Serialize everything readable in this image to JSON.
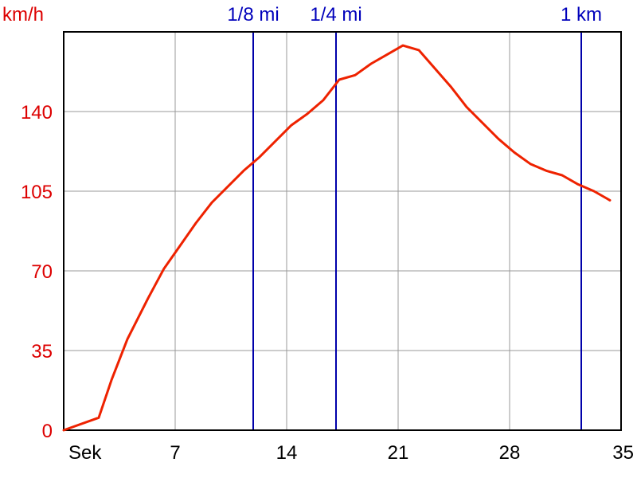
{
  "chart_data": {
    "type": "line",
    "ylabel": "km/h",
    "xlabel": "Sek",
    "xlim": [
      0,
      35
    ],
    "ylim": [
      0,
      175
    ],
    "x_ticks": [
      7,
      14,
      21,
      28,
      35
    ],
    "y_ticks": [
      0,
      35,
      70,
      105,
      140
    ],
    "grid": true,
    "colors": {
      "line": "#ee2200",
      "y_labels": "#dd0000",
      "markers": "#0000aa",
      "grid": "#999999"
    },
    "series": [
      {
        "x": [
          0,
          2.2,
          3,
          4,
          5.3,
          6.3,
          7.3,
          8.3,
          9.3,
          10.3,
          11.3,
          12.3,
          13.3,
          14.3,
          15.3,
          16.3,
          17.3,
          18.3,
          19.3,
          20.3,
          21.3,
          22.3,
          23.3,
          24.3,
          25.3,
          26.3,
          27.3,
          28.3,
          29.3,
          30.3,
          31.3,
          32.3,
          33.3,
          34.3
        ],
        "y": [
          0,
          5.5,
          22,
          40,
          58,
          71,
          81,
          91,
          100,
          107,
          114,
          120,
          127,
          134,
          139,
          145,
          154,
          156,
          161,
          165,
          169,
          167,
          159,
          151,
          142,
          135,
          128,
          122,
          117,
          114,
          112,
          108,
          105,
          101
        ]
      }
    ],
    "markers": [
      {
        "label": "1/8 mi",
        "x": 11.9
      },
      {
        "label": "1/4 mi",
        "x": 17.1
      },
      {
        "label": "1 km",
        "x": 32.5
      }
    ]
  }
}
